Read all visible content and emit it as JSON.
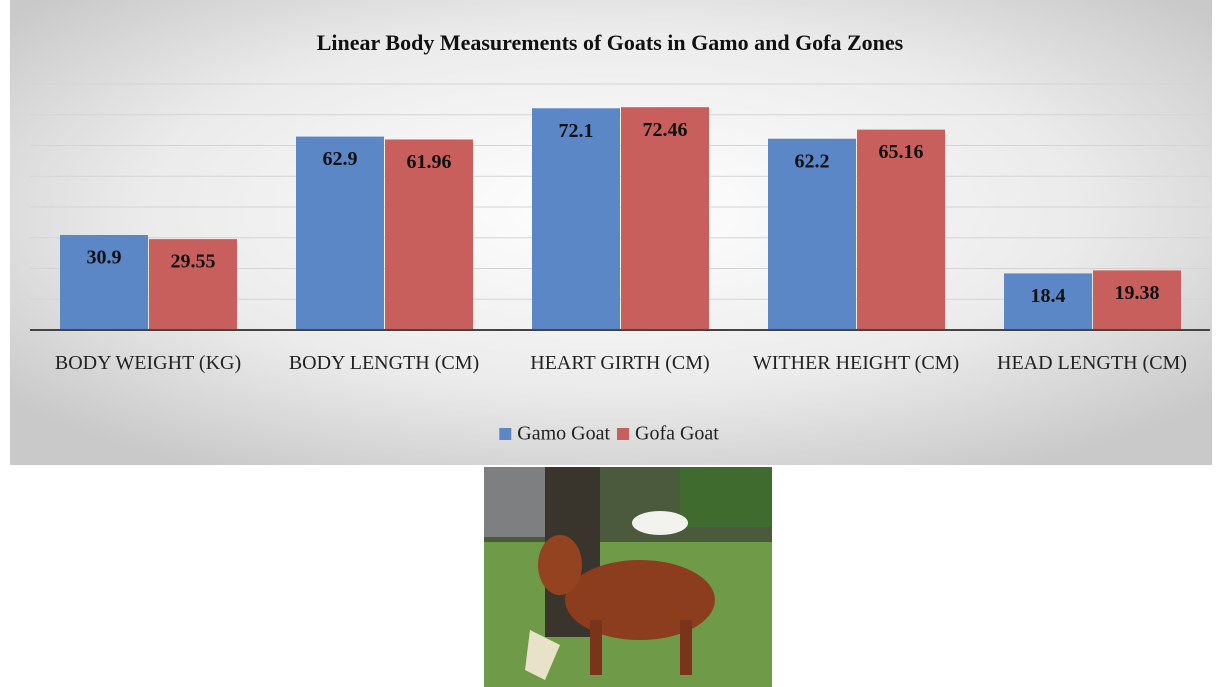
{
  "chart_data": {
    "type": "bar",
    "title": "Linear Body Measurements of Goats in Gamo and Gofa Zones",
    "categories": [
      "BODY WEIGHT (KG)",
      "BODY LENGTH (CM)",
      "HEART GIRTH (CM)",
      "WITHER HEIGHT (CM)",
      "HEAD LENGTH (CM)"
    ],
    "series": [
      {
        "name": "Gamo Goat",
        "color": "#5b87c6",
        "values": [
          30.9,
          62.9,
          72.1,
          62.2,
          18.4
        ]
      },
      {
        "name": "Gofa Goat",
        "color": "#c95f5d",
        "values": [
          29.55,
          61.96,
          72.46,
          65.16,
          19.38
        ]
      }
    ],
    "ylim": [
      0,
      80
    ],
    "yticks": [
      0,
      10,
      20,
      30,
      40,
      50,
      60,
      70,
      80
    ],
    "grid": true,
    "legend": "bottom"
  }
}
